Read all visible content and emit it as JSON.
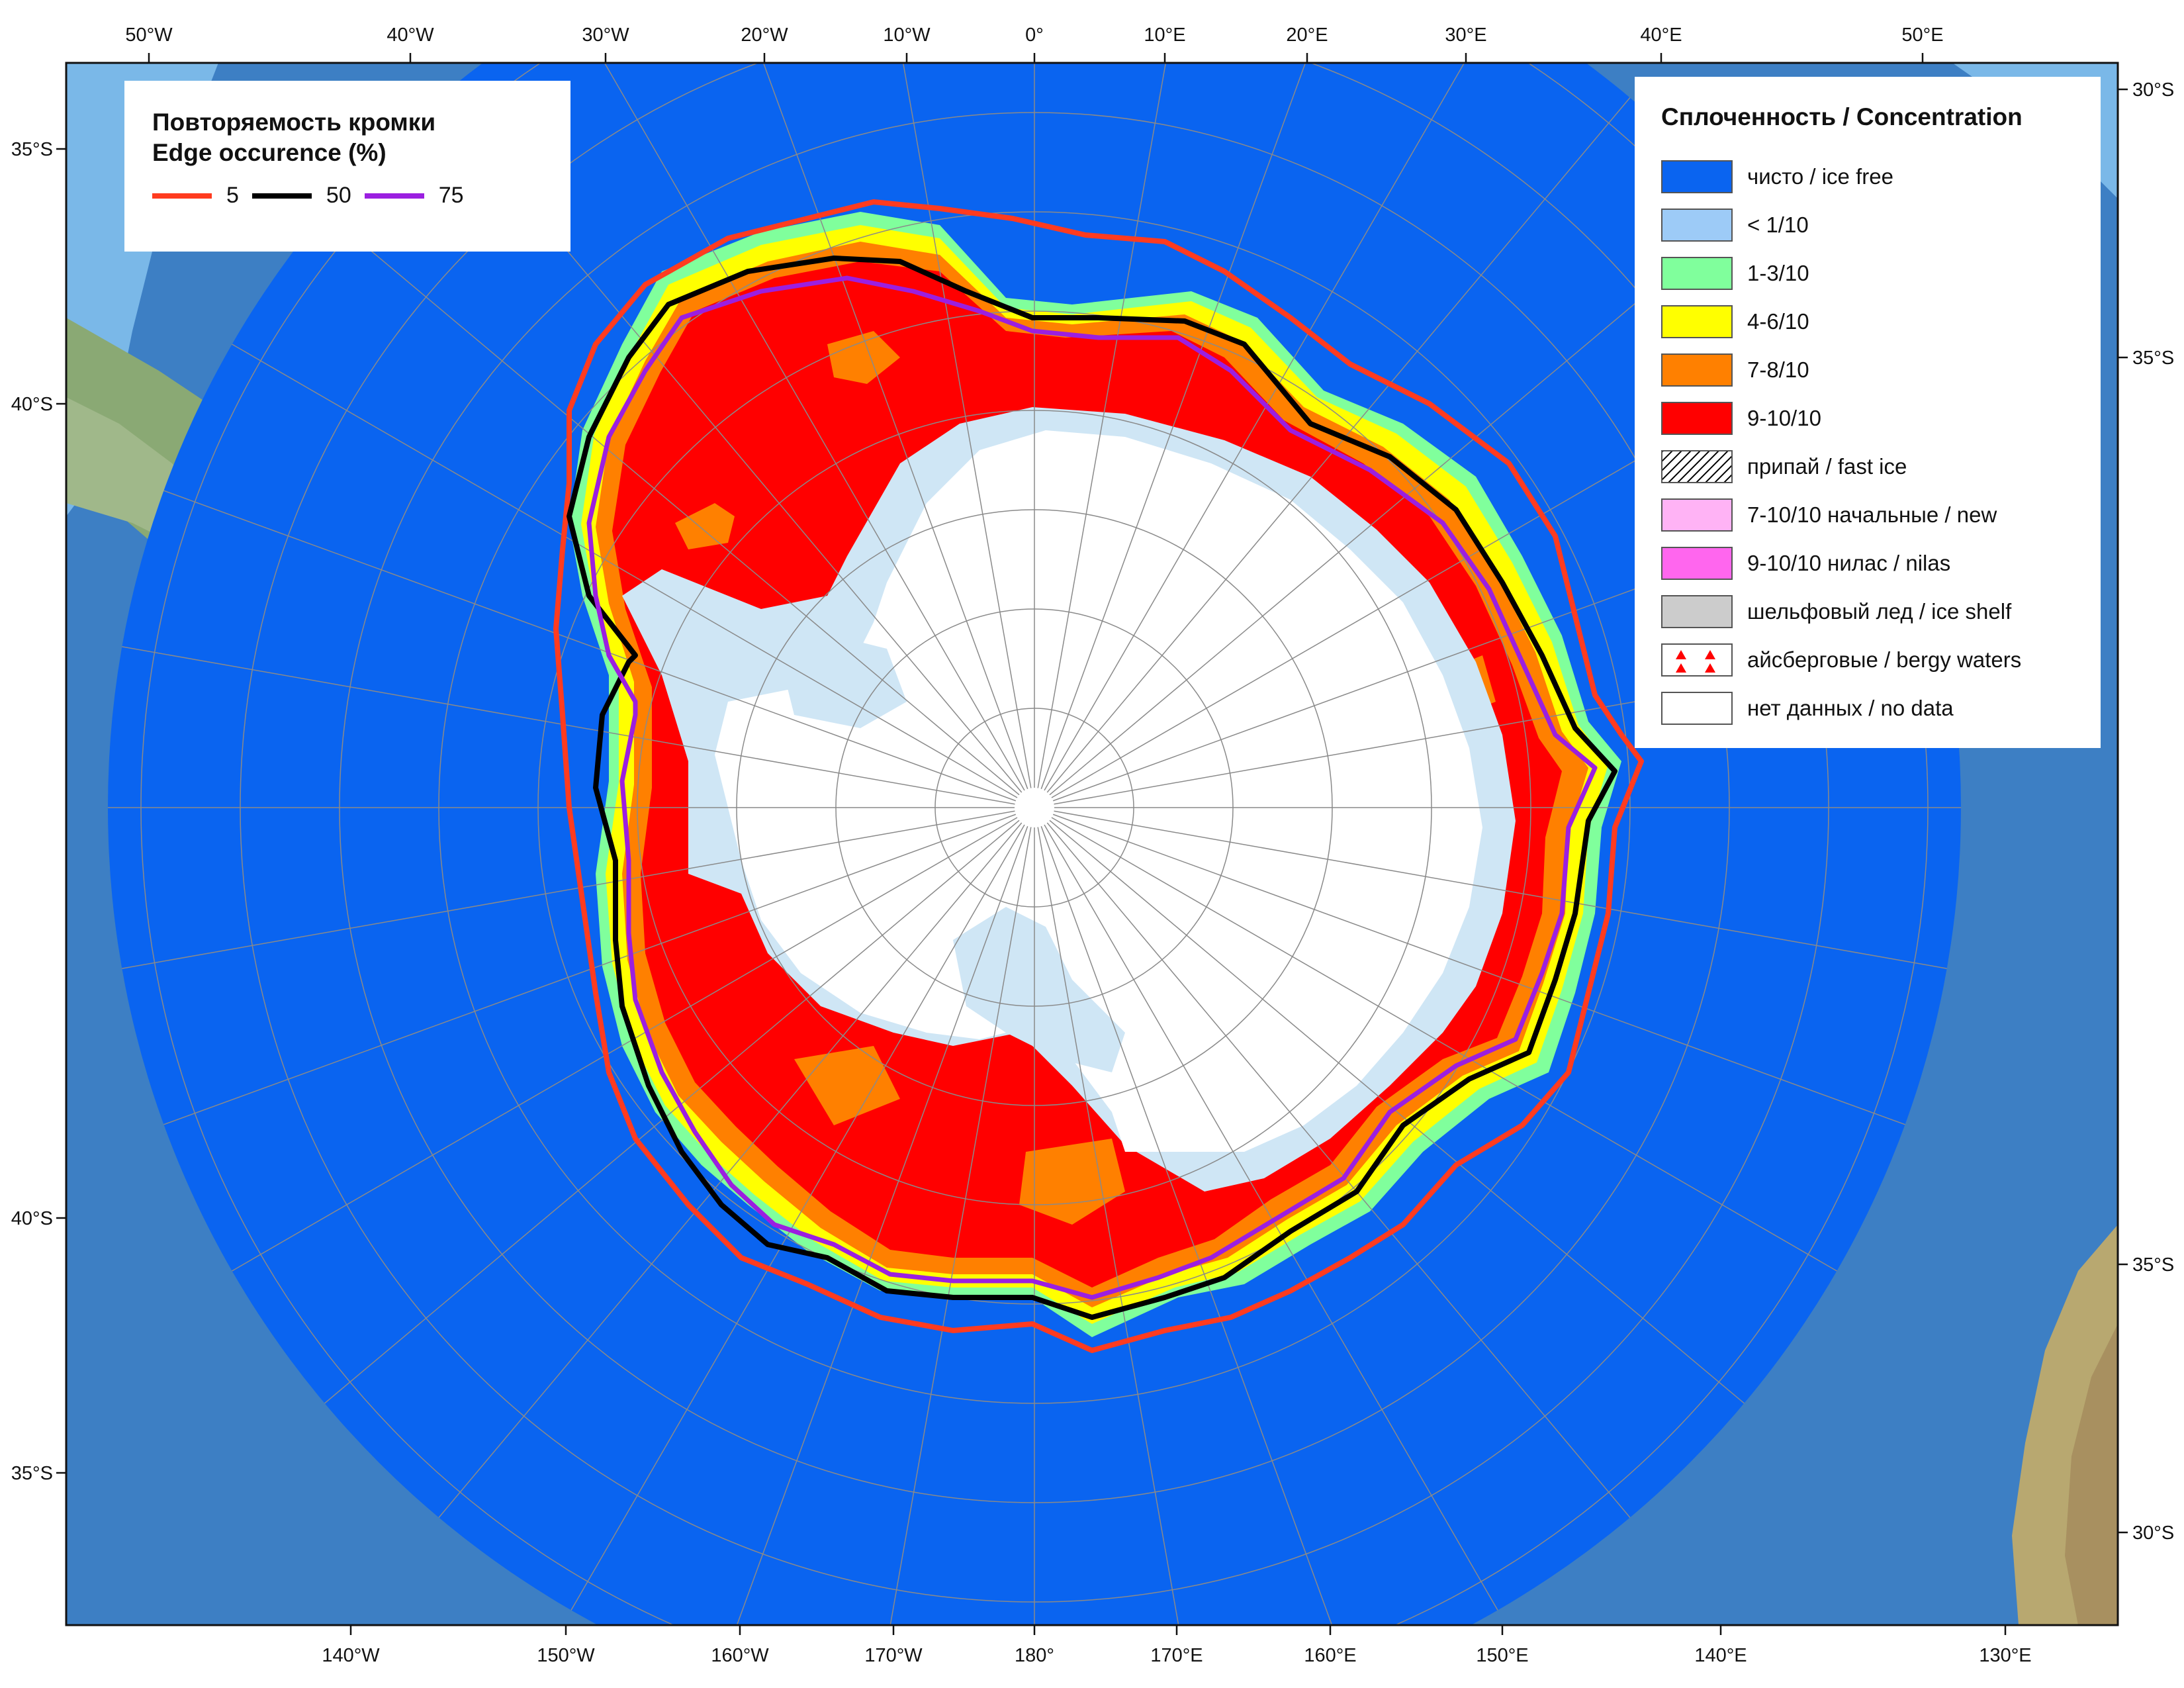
{
  "map": {
    "top_labels": [
      "50°W",
      "40°W",
      "30°W",
      "20°W",
      "10°W",
      "0°",
      "10°E",
      "20°E",
      "30°E",
      "40°E",
      "50°E"
    ],
    "bottom_labels": [
      "140°W",
      "150°W",
      "160°W",
      "170°W",
      "180°",
      "170°E",
      "160°E",
      "150°E",
      "140°E",
      "130°E"
    ],
    "left_labels": [
      "35°S",
      "40°S",
      "40°S",
      "35°S"
    ],
    "right_labels": [
      "30°S",
      "35°S",
      "35°S",
      "30°S"
    ]
  },
  "edge_legend": {
    "title_ru": "Повторяемость кромки",
    "title_en": "Edge occurence (%)",
    "items": [
      {
        "label": "5",
        "color": "#ff3b1f"
      },
      {
        "label": "50",
        "color": "#000000"
      },
      {
        "label": "75",
        "color": "#9b1fe0"
      }
    ]
  },
  "concentration_legend": {
    "title": "Сплоченность / Concentration",
    "items": [
      {
        "label": "чисто / ice free",
        "color": "#0a64f0"
      },
      {
        "label": "< 1/10",
        "color": "#9dcbf7"
      },
      {
        "label": "1-3/10",
        "color": "#80ff9c"
      },
      {
        "label": "4-6/10",
        "color": "#ffff00"
      },
      {
        "label": "7-8/10",
        "color": "#ff8000"
      },
      {
        "label": "9-10/10",
        "color": "#ff0000"
      },
      {
        "label": "припай / fast ice",
        "color": "pattern-hatch"
      },
      {
        "label": "7-10/10 начальные / new",
        "color": "#ffb3f5"
      },
      {
        "label": "9-10/10 нилас / nilas",
        "color": "#ff66ee"
      },
      {
        "label": "шельфовый лед / ice shelf",
        "color": "#cccccc"
      },
      {
        "label": "айсберговые / bergy waters",
        "color": "pattern-triangles"
      },
      {
        "label": "нет данных / no data",
        "color": "#ffffff"
      }
    ]
  }
}
